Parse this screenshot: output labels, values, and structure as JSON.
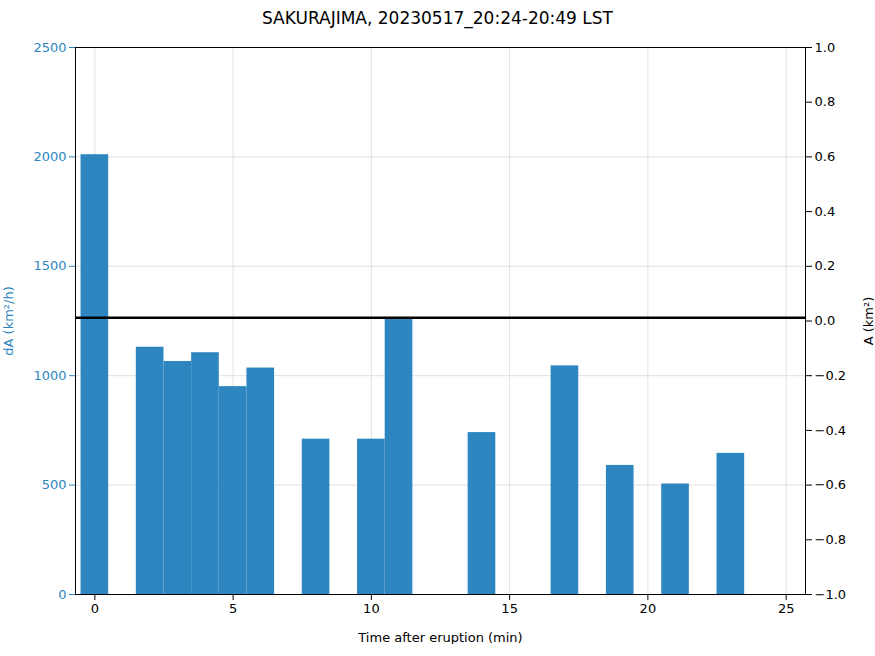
{
  "chart_data": {
    "type": "bar",
    "title": "SAKURAJIMA, 20230517_20:24-20:49 LST",
    "xlabel": "Time after eruption (min)",
    "ylabel": "dA (km²/h)",
    "y2label": "A (km²)",
    "x": [
      0,
      2,
      3,
      4,
      5,
      6,
      8,
      10,
      11,
      14,
      17,
      19,
      21,
      23
    ],
    "values": [
      2010,
      1130,
      1065,
      1105,
      950,
      1035,
      710,
      710,
      1265,
      740,
      1045,
      590,
      505,
      645
    ],
    "color": "#2e86c1",
    "hline": {
      "y": 1265,
      "color": "black"
    },
    "xlim": [
      -0.7,
      25.7
    ],
    "ylim": [
      0,
      2500
    ],
    "y2lim": [
      -1,
      1
    ],
    "xticks": [
      0,
      5,
      10,
      15,
      20,
      25
    ],
    "yticks": [
      0,
      500,
      1000,
      1500,
      2000,
      2500
    ],
    "y2ticks": [
      {
        "value": -1,
        "label": "−1.0"
      },
      {
        "value": -0.8,
        "label": "−0.8"
      },
      {
        "value": -0.6,
        "label": "−0.6"
      },
      {
        "value": -0.4,
        "label": "−0.4"
      },
      {
        "value": -0.2,
        "label": "−0.2"
      },
      {
        "value": 0,
        "label": "0.0"
      },
      {
        "value": 0.2,
        "label": "0.2"
      },
      {
        "value": 0.4,
        "label": "0.4"
      },
      {
        "value": 0.6,
        "label": "0.6"
      },
      {
        "value": 0.8,
        "label": "0.8"
      },
      {
        "value": 1,
        "label": "1.0"
      }
    ],
    "grid": true
  }
}
